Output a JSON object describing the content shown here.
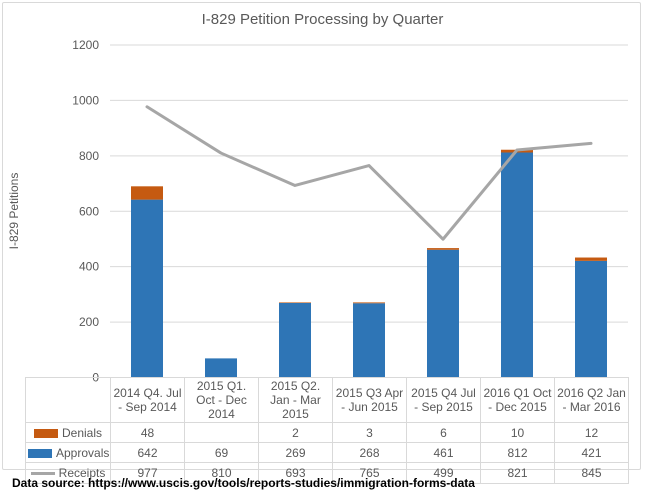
{
  "title": "I-829 Petition Processing by Quarter",
  "y_axis": {
    "title": "I-829 Petitions",
    "ticks": [
      0,
      200,
      400,
      600,
      800,
      1000,
      1200
    ],
    "max": 1200
  },
  "source_note": "Data source: https://www.uscis.gov/tools/reports-studies/immigration-forms-data",
  "colors": {
    "denials": "#C55A11",
    "approvals": "#2E75B6",
    "receipts": "#A6A6A6",
    "gridline": "#D9D9D9",
    "axis_line": "#BFBFBF",
    "table_border": "#D9D9D9",
    "text": "#595959"
  },
  "chart_data": {
    "type": "combo",
    "title": "I-829 Petition Processing by Quarter",
    "xlabel": "",
    "ylabel": "I-829 Petitions",
    "ylim": [
      0,
      1200
    ],
    "grid": true,
    "legend_position": "data-table-left",
    "categories": [
      "2014 Q4. Jul - Sep 2014",
      "2015 Q1. Oct - Dec 2014",
      "2015 Q2. Jan - Mar 2015",
      "2015 Q3 Apr - Jun 2015",
      "2015 Q4 Jul - Sep 2015",
      "2016 Q1 Oct - Dec 2015",
      "2016 Q2 Jan - Mar 2016"
    ],
    "series": [
      {
        "name": "Denials",
        "type": "bar",
        "stack": "petitions",
        "color": "#C55A11",
        "values": [
          48,
          null,
          2,
          3,
          6,
          10,
          12
        ]
      },
      {
        "name": "Approvals",
        "type": "bar",
        "stack": "petitions",
        "color": "#2E75B6",
        "values": [
          642,
          69,
          269,
          268,
          461,
          812,
          421
        ]
      },
      {
        "name": "Receipts",
        "type": "line",
        "color": "#A6A6A6",
        "values": [
          977,
          810,
          693,
          765,
          499,
          821,
          845
        ]
      }
    ]
  },
  "table": {
    "rows": [
      {
        "label": "Denials",
        "swatch": "bar",
        "color": "#C55A11",
        "values": [
          "48",
          "",
          "2",
          "3",
          "6",
          "10",
          "12"
        ]
      },
      {
        "label": "Approvals",
        "swatch": "bar",
        "color": "#2E75B6",
        "values": [
          "642",
          "69",
          "269",
          "268",
          "461",
          "812",
          "421"
        ]
      },
      {
        "label": "Receipts",
        "swatch": "line",
        "color": "#A6A6A6",
        "values": [
          "977",
          "810",
          "693",
          "765",
          "499",
          "821",
          "845"
        ]
      }
    ]
  }
}
